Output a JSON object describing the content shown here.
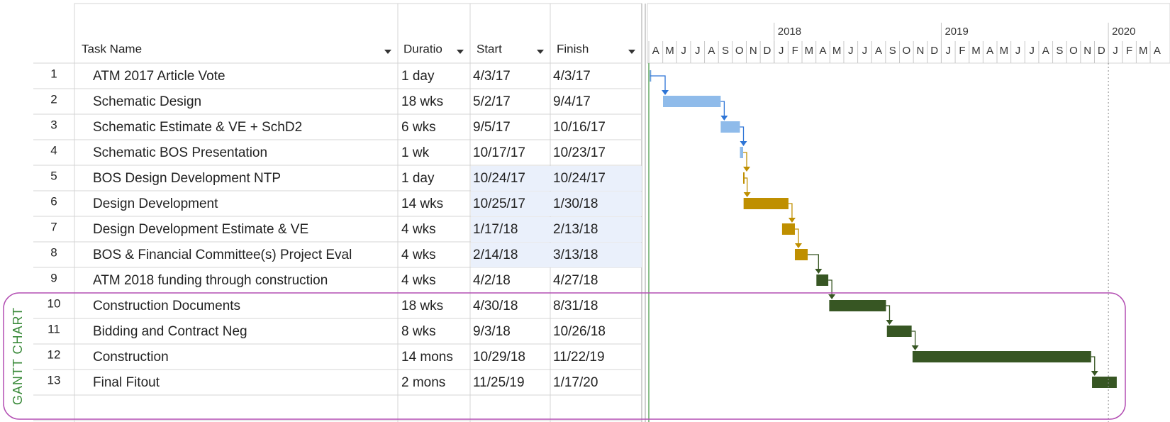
{
  "table": {
    "columns": [
      "Task Name",
      "Duratio",
      "Start",
      "Finish"
    ],
    "rows": [
      {
        "id": 1,
        "name": "ATM 2017 Article Vote",
        "duration": "1 day",
        "start": "4/3/17",
        "finish": "4/3/17",
        "color": "#6fa3dc"
      },
      {
        "id": 2,
        "name": "Schematic Design",
        "duration": "18 wks",
        "start": "5/2/17",
        "finish": "9/4/17",
        "color": "#8fbbea"
      },
      {
        "id": 3,
        "name": "Schematic Estimate & VE + SchD2",
        "duration": "6 wks",
        "start": "9/5/17",
        "finish": "10/16/17",
        "color": "#8fbbea"
      },
      {
        "id": 4,
        "name": "Schematic BOS Presentation",
        "duration": "1 wk",
        "start": "10/17/17",
        "finish": "10/23/17",
        "color": "#8fbbea"
      },
      {
        "id": 5,
        "name": "BOS Design Development NTP",
        "duration": "1 day",
        "start": "10/24/17",
        "finish": "10/24/17",
        "color": "#bf8f00",
        "highlight": true
      },
      {
        "id": 6,
        "name": "Design Development",
        "duration": "14 wks",
        "start": "10/25/17",
        "finish": "1/30/18",
        "color": "#bf8f00",
        "highlight": true
      },
      {
        "id": 7,
        "name": "Design Development Estimate & VE",
        "duration": "4 wks",
        "start": "1/17/18",
        "finish": "2/13/18",
        "color": "#bf8f00",
        "highlight": true
      },
      {
        "id": 8,
        "name": "BOS & Financial Committee(s) Project Eval",
        "duration": "4 wks",
        "start": "2/14/18",
        "finish": "3/13/18",
        "color": "#bf8f00",
        "highlight": true
      },
      {
        "id": 9,
        "name": "ATM 2018 funding through construction",
        "duration": "4 wks",
        "start": "4/2/18",
        "finish": "4/27/18",
        "color": "#375623"
      },
      {
        "id": 10,
        "name": "Construction Documents",
        "duration": "18 wks",
        "start": "4/30/18",
        "finish": "8/31/18",
        "color": "#375623"
      },
      {
        "id": 11,
        "name": "Bidding and Contract Neg",
        "duration": "8 wks",
        "start": "9/3/18",
        "finish": "10/26/18",
        "color": "#375623"
      },
      {
        "id": 12,
        "name": "Construction",
        "duration": "14 mons",
        "start": "10/29/18",
        "finish": "11/22/19",
        "color": "#375623"
      },
      {
        "id": 13,
        "name": "Final Fitout",
        "duration": "2 mons",
        "start": "11/25/19",
        "finish": "1/17/20",
        "color": "#375623"
      }
    ]
  },
  "timescale": {
    "years": [
      {
        "label": "2018",
        "month_index": 9
      },
      {
        "label": "2019",
        "month_index": 21
      },
      {
        "label": "2020",
        "month_index": 33
      }
    ],
    "months": [
      "A",
      "M",
      "J",
      "J",
      "A",
      "S",
      "O",
      "N",
      "D",
      "J",
      "F",
      "M",
      "A",
      "M",
      "J",
      "J",
      "A",
      "S",
      "O",
      "N",
      "D",
      "J",
      "F",
      "M",
      "A",
      "M",
      "J",
      "J",
      "A",
      "S",
      "O",
      "N",
      "D",
      "J",
      "F",
      "M",
      "A"
    ]
  },
  "group_label": "GANTT CHART"
}
